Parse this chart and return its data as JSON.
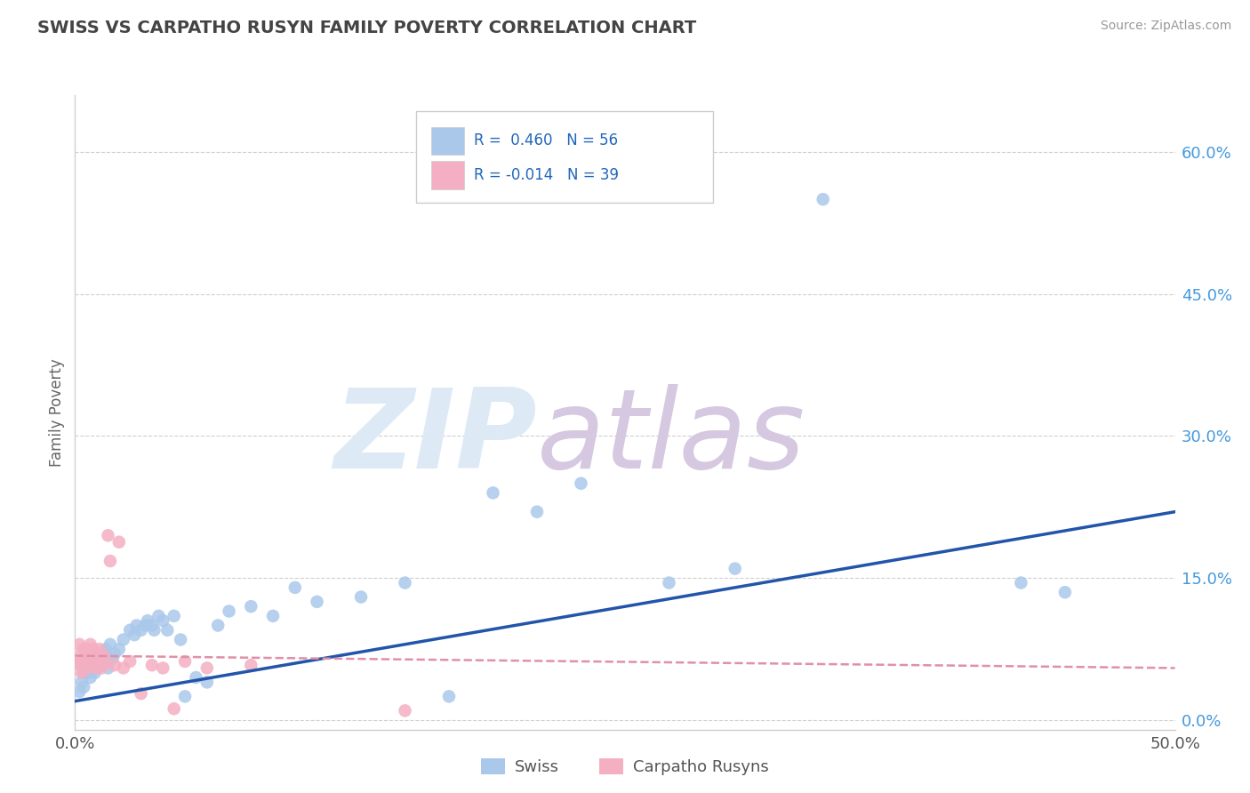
{
  "title": "SWISS VS CARPATHO RUSYN FAMILY POVERTY CORRELATION CHART",
  "source": "Source: ZipAtlas.com",
  "ylabel": "Family Poverty",
  "xlim": [
    0,
    0.5
  ],
  "ylim": [
    -0.01,
    0.66
  ],
  "xtick_positions": [
    0.0,
    0.5
  ],
  "xtick_labels": [
    "0.0%",
    "50.0%"
  ],
  "yticks_right": [
    0.0,
    0.15,
    0.3,
    0.45,
    0.6
  ],
  "ytick_right_labels": [
    "0.0%",
    "15.0%",
    "30.0%",
    "45.0%",
    "60.0%"
  ],
  "swiss_R": 0.46,
  "swiss_N": 56,
  "rusyn_R": -0.014,
  "rusyn_N": 39,
  "swiss_color": "#aac8ea",
  "rusyn_color": "#f4afc2",
  "swiss_line_color": "#2255aa",
  "rusyn_line_color": "#e090a8",
  "swiss_x": [
    0.002,
    0.003,
    0.004,
    0.004,
    0.005,
    0.005,
    0.006,
    0.007,
    0.007,
    0.008,
    0.009,
    0.01,
    0.01,
    0.011,
    0.012,
    0.013,
    0.014,
    0.015,
    0.016,
    0.017,
    0.018,
    0.02,
    0.022,
    0.025,
    0.027,
    0.028,
    0.03,
    0.032,
    0.033,
    0.035,
    0.036,
    0.038,
    0.04,
    0.042,
    0.045,
    0.048,
    0.05,
    0.055,
    0.06,
    0.065,
    0.07,
    0.08,
    0.09,
    0.1,
    0.11,
    0.13,
    0.15,
    0.17,
    0.19,
    0.21,
    0.23,
    0.27,
    0.3,
    0.34,
    0.43,
    0.45
  ],
  "swiss_y": [
    0.03,
    0.04,
    0.05,
    0.035,
    0.055,
    0.06,
    0.05,
    0.045,
    0.065,
    0.06,
    0.05,
    0.07,
    0.055,
    0.065,
    0.06,
    0.07,
    0.075,
    0.055,
    0.08,
    0.065,
    0.07,
    0.075,
    0.085,
    0.095,
    0.09,
    0.1,
    0.095,
    0.1,
    0.105,
    0.1,
    0.095,
    0.11,
    0.105,
    0.095,
    0.11,
    0.085,
    0.025,
    0.045,
    0.04,
    0.1,
    0.115,
    0.12,
    0.11,
    0.14,
    0.125,
    0.13,
    0.145,
    0.025,
    0.24,
    0.22,
    0.25,
    0.145,
    0.16,
    0.55,
    0.145,
    0.135
  ],
  "rusyn_x": [
    0.001,
    0.002,
    0.002,
    0.003,
    0.003,
    0.004,
    0.004,
    0.005,
    0.005,
    0.006,
    0.006,
    0.007,
    0.007,
    0.008,
    0.008,
    0.009,
    0.009,
    0.01,
    0.01,
    0.011,
    0.011,
    0.012,
    0.012,
    0.013,
    0.014,
    0.015,
    0.016,
    0.018,
    0.02,
    0.022,
    0.025,
    0.03,
    0.035,
    0.04,
    0.045,
    0.05,
    0.06,
    0.08,
    0.15
  ],
  "rusyn_y": [
    0.06,
    0.08,
    0.06,
    0.07,
    0.05,
    0.075,
    0.055,
    0.065,
    0.058,
    0.075,
    0.055,
    0.068,
    0.08,
    0.062,
    0.075,
    0.058,
    0.072,
    0.055,
    0.065,
    0.06,
    0.075,
    0.065,
    0.055,
    0.068,
    0.06,
    0.195,
    0.168,
    0.058,
    0.188,
    0.055,
    0.062,
    0.028,
    0.058,
    0.055,
    0.012,
    0.062,
    0.055,
    0.058,
    0.01
  ],
  "swiss_line_x": [
    0.0,
    0.5
  ],
  "swiss_line_y": [
    0.02,
    0.22
  ],
  "rusyn_line_x": [
    0.0,
    0.5
  ],
  "rusyn_line_y": [
    0.068,
    0.055
  ]
}
